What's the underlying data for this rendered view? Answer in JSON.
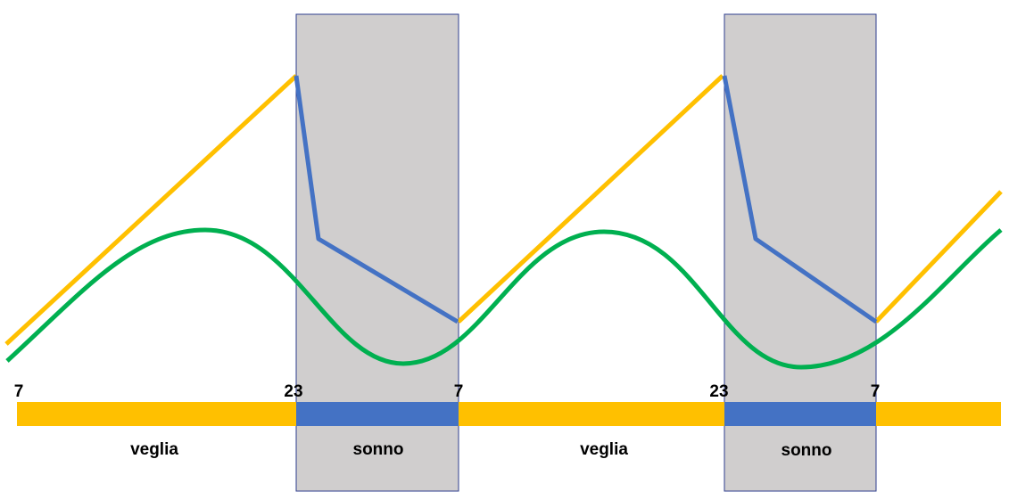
{
  "hour_labels": [
    "7",
    "23",
    "7",
    "23",
    "7"
  ],
  "phases": [
    "veglia",
    "sonno",
    "veglia",
    "sonno"
  ]
}
